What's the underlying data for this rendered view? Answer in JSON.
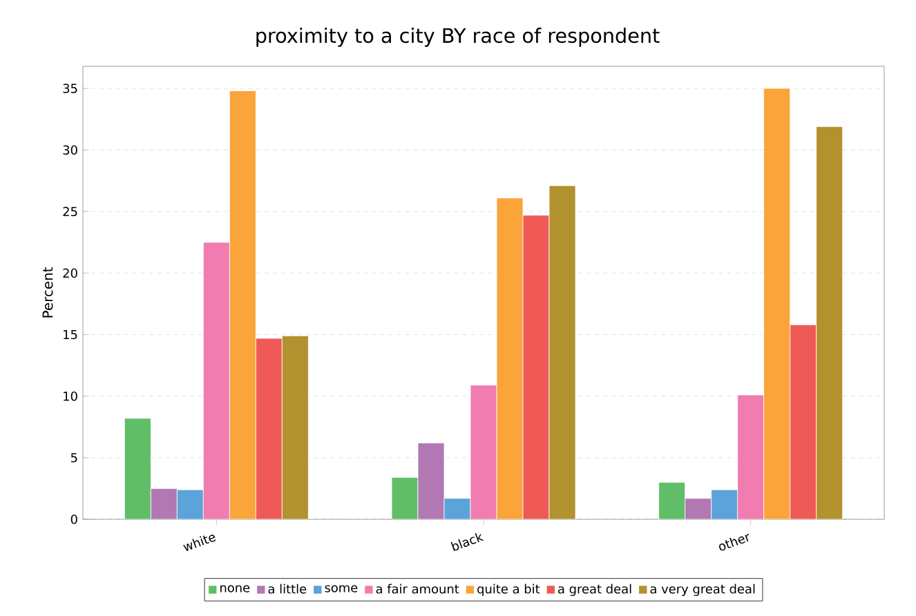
{
  "chart_data": {
    "type": "bar",
    "title": "proximity to a city BY race of respondent",
    "ylabel": "Percent",
    "categories": [
      "white",
      "black",
      "other"
    ],
    "series": [
      {
        "name": "none",
        "color": "#60be68",
        "values": [
          8.2,
          3.4,
          3.0
        ]
      },
      {
        "name": "a little",
        "color": "#b278b4",
        "values": [
          2.5,
          6.2,
          1.7
        ]
      },
      {
        "name": "some",
        "color": "#5ba3d9",
        "values": [
          2.4,
          1.7,
          2.4
        ]
      },
      {
        "name": "a fair amount",
        "color": "#f07cb0",
        "values": [
          22.5,
          10.9,
          10.1
        ]
      },
      {
        "name": "quite a bit",
        "color": "#faa43a",
        "values": [
          34.8,
          26.1,
          35.0
        ]
      },
      {
        "name": "a great deal",
        "color": "#f05a56",
        "values": [
          14.7,
          24.7,
          15.8
        ]
      },
      {
        "name": "a very great deal",
        "color": "#b2912f",
        "values": [
          14.9,
          27.1,
          31.9
        ]
      }
    ],
    "ylim": [
      0,
      36.8
    ],
    "yticks": [
      0,
      5,
      10,
      15,
      20,
      25,
      30,
      35
    ],
    "grid": "y",
    "legend": "bottom"
  }
}
